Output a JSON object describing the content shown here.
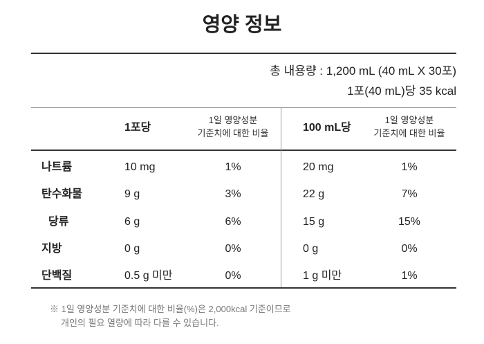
{
  "header": {
    "title": "영양 정보"
  },
  "summary": [
    "총 내용량 : 1,200 mL (40 mL X 30포)",
    "1포(40 mL)당 35 kcal"
  ],
  "table": {
    "columns": [
      "1포당",
      [
        "1일 영양성분",
        "기준치에 대한 비율"
      ],
      "100 mL당",
      [
        "1일 영양성분",
        "기준치에 대한 비율"
      ]
    ],
    "rows": [
      [
        "나트륨",
        "10 mg",
        "1%",
        "20 mg",
        "1%"
      ],
      [
        "탄수화물",
        "9 g",
        "3%",
        "22 g",
        "7%"
      ],
      [
        "당류",
        "6 g",
        "6%",
        "15 g",
        "15%"
      ],
      [
        "지방",
        "0 g",
        "0%",
        "0 g",
        "0%"
      ],
      [
        "단백질",
        "0.5 g 미만",
        "0%",
        "1 g 미만",
        "1%"
      ]
    ]
  },
  "footnote": [
    "※ 1일 영양성분 기준치에 대한 비율(%)은 2,000kcal 기준이므로",
    "개인의 필요 열량에 따라 다를 수 있습니다."
  ]
}
